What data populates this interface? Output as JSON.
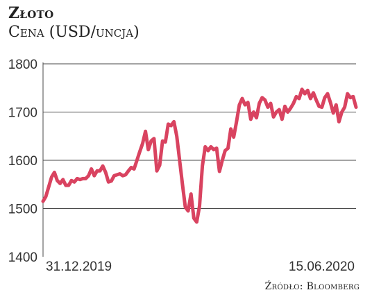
{
  "header": {
    "title": "Złoto",
    "subtitle": "Cena (USD/uncja)"
  },
  "source": "Źródło: Bloomberg",
  "chart_data": {
    "type": "line",
    "title": "Złoto",
    "subtitle": "Cena (USD/uncja)",
    "xlabel": "",
    "ylabel": "",
    "ylim": [
      1400,
      1800
    ],
    "yticks": [
      1400,
      1500,
      1600,
      1700,
      1800
    ],
    "x_tick_labels": [
      "31.12.2019",
      "15.06.2020"
    ],
    "grid": true,
    "line_color": "#d94360",
    "series": [
      {
        "name": "",
        "x_range": [
          "31.12.2019",
          "15.06.2020"
        ],
        "values": [
          1515,
          1525,
          1545,
          1565,
          1575,
          1558,
          1552,
          1560,
          1548,
          1548,
          1558,
          1555,
          1562,
          1560,
          1562,
          1562,
          1568,
          1582,
          1568,
          1578,
          1578,
          1588,
          1575,
          1555,
          1557,
          1568,
          1570,
          1572,
          1568,
          1570,
          1578,
          1585,
          1582,
          1600,
          1618,
          1635,
          1660,
          1622,
          1640,
          1645,
          1578,
          1590,
          1640,
          1638,
          1675,
          1672,
          1680,
          1650,
          1600,
          1550,
          1503,
          1495,
          1530,
          1480,
          1472,
          1505,
          1588,
          1628,
          1620,
          1628,
          1622,
          1625,
          1577,
          1600,
          1620,
          1625,
          1665,
          1648,
          1680,
          1715,
          1728,
          1715,
          1720,
          1685,
          1700,
          1688,
          1718,
          1730,
          1725,
          1710,
          1718,
          1690,
          1700,
          1705,
          1685,
          1712,
          1700,
          1708,
          1718,
          1732,
          1728,
          1747,
          1738,
          1745,
          1728,
          1740,
          1725,
          1712,
          1710,
          1730,
          1738,
          1720,
          1698,
          1715,
          1680,
          1700,
          1710,
          1738,
          1730,
          1732,
          1710
        ]
      }
    ]
  }
}
